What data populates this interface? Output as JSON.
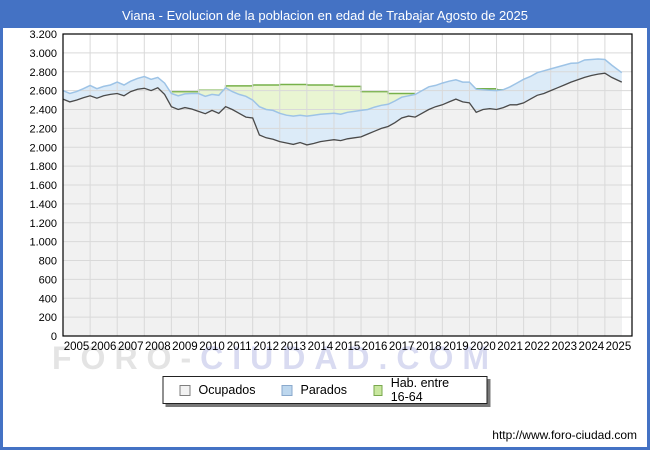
{
  "title_bar": {
    "text": "Viana - Evolucion de la poblacion en edad de Trabajar Agosto de 2025",
    "bg_color": "#4472c4",
    "text_color": "#ffffff"
  },
  "watermark": {
    "part1": "FORO-",
    "part2": "CIUDAD.COM",
    "color1": "#e4e4e4",
    "color2": "#d9dbf1"
  },
  "footer": {
    "url": "http://www.foro-ciudad.com"
  },
  "legend": {
    "items": [
      {
        "label": "Ocupados",
        "fill": "#f2f2f2",
        "border": "#7f7f7f"
      },
      {
        "label": "Parados",
        "fill": "#bdd7ee",
        "border": "#8aa9cc"
      },
      {
        "label": "Hab. entre 16-64",
        "fill": "#c9e79f",
        "border": "#79a84e"
      }
    ]
  },
  "chart_data": {
    "type": "area",
    "title": "Viana - Evolucion de la poblacion en edad de Trabajar Agosto de 2025",
    "xlabel": "",
    "ylabel": "",
    "ylim": [
      0,
      3200
    ],
    "y_tick_step": 200,
    "x_range": [
      2005,
      2026
    ],
    "x_sampling_step_years": 0.25,
    "x_end": 2025.625,
    "grid": true,
    "legend_position": "bottom-center",
    "y_ticks": [
      "3.200",
      "3.000",
      "2.800",
      "2.600",
      "2.400",
      "2.200",
      "2.000",
      "1.800",
      "1.600",
      "1.400",
      "1.200",
      "1.000",
      "800",
      "600",
      "400",
      "200",
      "0"
    ],
    "x_ticks": [
      "2005",
      "2006",
      "2007",
      "2008",
      "2009",
      "2010",
      "2011",
      "2012",
      "2013",
      "2014",
      "2015",
      "2016",
      "2017",
      "2018",
      "2019",
      "2020",
      "2021",
      "2022",
      "2023",
      "2024",
      "2025"
    ],
    "grid_color": "#d9d9d9",
    "axis_color": "#000000",
    "series": [
      {
        "name": "Ocupados",
        "type": "area",
        "line_color": "#4a4a4a",
        "fill_color": "#f1f1f1",
        "values": [
          2510,
          2480,
          2500,
          2525,
          2545,
          2520,
          2545,
          2560,
          2570,
          2545,
          2590,
          2615,
          2625,
          2600,
          2630,
          2560,
          2430,
          2400,
          2420,
          2405,
          2380,
          2355,
          2390,
          2360,
          2430,
          2400,
          2360,
          2320,
          2310,
          2130,
          2100,
          2085,
          2060,
          2045,
          2030,
          2050,
          2025,
          2040,
          2060,
          2070,
          2080,
          2070,
          2090,
          2100,
          2110,
          2140,
          2170,
          2200,
          2220,
          2260,
          2310,
          2330,
          2320,
          2360,
          2400,
          2430,
          2450,
          2480,
          2510,
          2480,
          2470,
          2370,
          2400,
          2410,
          2400,
          2420,
          2450,
          2450,
          2470,
          2510,
          2550,
          2570,
          2600,
          2630,
          2660,
          2690,
          2715,
          2740,
          2760,
          2775,
          2785,
          2740,
          2690
        ]
      },
      {
        "name": "Parados",
        "type": "area",
        "stacked_on": "Ocupados",
        "line_color": "#9dc3e6",
        "fill_color": "#dcebf8",
        "values": [
          90,
          90,
          90,
          95,
          110,
          100,
          100,
          100,
          120,
          115,
          110,
          115,
          125,
          120,
          110,
          120,
          140,
          145,
          145,
          165,
          190,
          185,
          170,
          190,
          200,
          190,
          200,
          220,
          190,
          300,
          300,
          305,
          300,
          295,
          300,
          290,
          305,
          300,
          290,
          285,
          280,
          280,
          280,
          280,
          280,
          260,
          255,
          245,
          235,
          230,
          220,
          215,
          240,
          240,
          240,
          225,
          230,
          220,
          205,
          210,
          220,
          245,
          210,
          195,
          200,
          190,
          190,
          230,
          250,
          240,
          240,
          240,
          230,
          220,
          210,
          200,
          178,
          185,
          170,
          160,
          145,
          130,
          100
        ]
      },
      {
        "name": "Hab. entre 16-64",
        "type": "step-area-annual",
        "line_color": "#77b14a",
        "fill_color": "#e9f5d2",
        "years_start": 2005,
        "values": [
          null,
          null,
          null,
          null,
          2590,
          2605,
          2650,
          2660,
          2665,
          2660,
          2645,
          2590,
          2570,
          null,
          null,
          2620,
          2610,
          null,
          null,
          null,
          null
        ]
      }
    ]
  }
}
